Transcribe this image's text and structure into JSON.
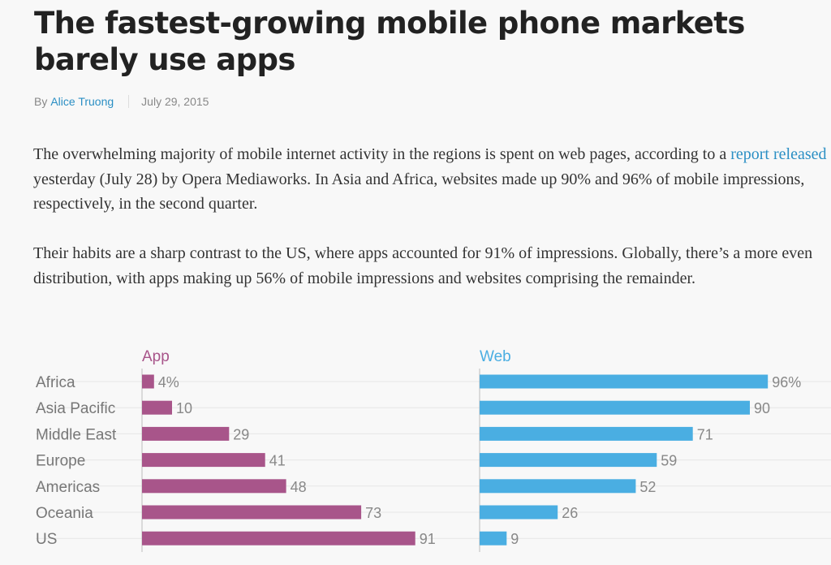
{
  "article": {
    "headline": "The fastest-growing mobile phone markets barely use apps",
    "byline_prefix": "By",
    "author": "Alice Truong",
    "date": "July 29, 2015",
    "p1_before": "The overwhelming majority of mobile internet activity in the regions is spent on web pages, according to a ",
    "p1_link": "report released",
    "p1_after": " yesterday (July 28) by Opera Mediaworks. In Asia and Africa, websites made up 90% and 96% of mobile impressions, respectively, in the second quarter.",
    "p2": "Their habits are a sharp contrast to the US, where apps accounted for 91% of impressions. Globally, there’s a more even distribution, with apps making up 56% of mobile impressions and websites comprising the remainder."
  },
  "colors": {
    "app": "#a8558a",
    "web": "#4aaee2"
  },
  "chart_data": {
    "type": "bar",
    "orientation": "horizontal",
    "categories": [
      "Africa",
      "Asia Pacific",
      "Middle East",
      "Europe",
      "Americas",
      "Oceania",
      "US"
    ],
    "series": [
      {
        "name": "App",
        "values": [
          4,
          10,
          29,
          41,
          48,
          73,
          91
        ],
        "labels": [
          "4%",
          "10",
          "29",
          "41",
          "48",
          "73",
          "91"
        ]
      },
      {
        "name": "Web",
        "values": [
          96,
          90,
          71,
          59,
          52,
          26,
          9
        ],
        "labels": [
          "96%",
          "90",
          "71",
          "59",
          "52",
          "26",
          "9"
        ]
      }
    ],
    "xlim": [
      0,
      100
    ]
  }
}
